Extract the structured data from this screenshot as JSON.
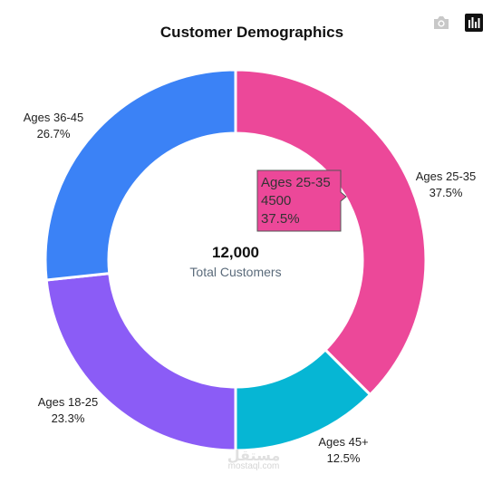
{
  "toolbar": {
    "camera_icon": "camera-icon",
    "chart_icon": "bar-chart-icon"
  },
  "watermark": {
    "logo_text": "مستقل",
    "site": "mostaql.com"
  },
  "chart_data": {
    "type": "pie",
    "title": "Customer Demographics",
    "hole": true,
    "center_value": "12,000",
    "center_label": "Total Customers",
    "total": 12000,
    "slices": [
      {
        "label": "Ages 25-35",
        "value": 4500,
        "percent": "37.5%",
        "color": "#ec4899"
      },
      {
        "label": "Ages 45+",
        "value": 1500,
        "percent": "12.5%",
        "color": "#06b6d4"
      },
      {
        "label": "Ages 18-25",
        "value": 2800,
        "percent": "23.3%",
        "color": "#8b5cf6"
      },
      {
        "label": "Ages 36-45",
        "value": 3200,
        "percent": "26.7%",
        "color": "#3b82f6"
      }
    ],
    "tooltip": {
      "label": "Ages 25-35",
      "value": "4500",
      "percent": "37.5%"
    }
  }
}
